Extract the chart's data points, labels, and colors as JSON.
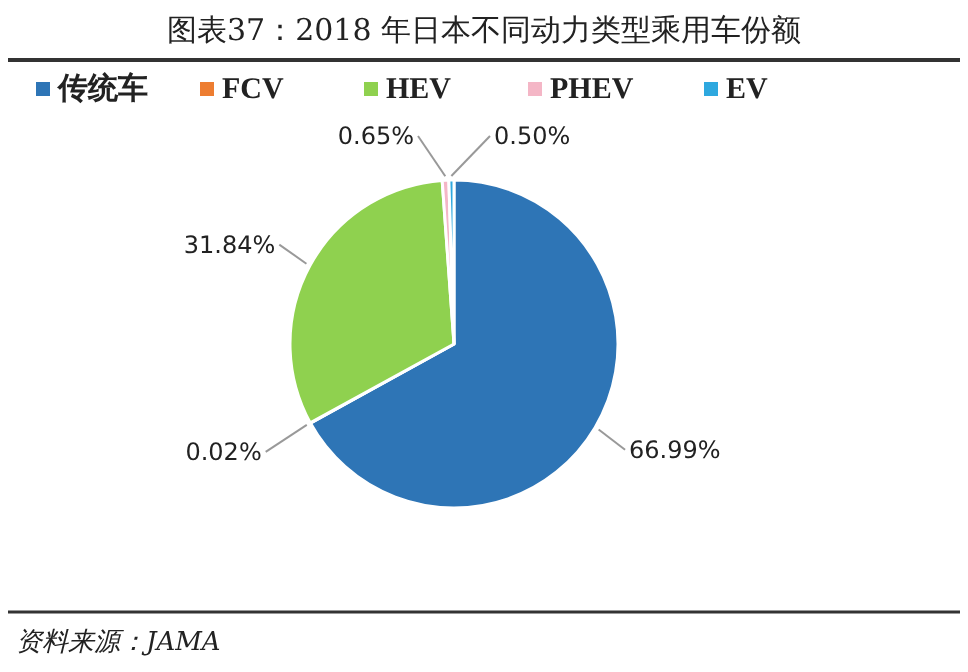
{
  "chart_data": {
    "type": "pie",
    "title": "图表37：2018 年日本不同动力类型乘用车份额",
    "categories": [
      "传统车",
      "FCV",
      "HEV",
      "PHEV",
      "EV"
    ],
    "values": [
      66.99,
      0.02,
      31.84,
      0.65,
      0.5
    ],
    "colors": [
      "#2e75b6",
      "#ed7d31",
      "#8fd14f",
      "#f4b6c6",
      "#2ea8df"
    ],
    "value_labels": [
      "66.99%",
      "0.02%",
      "31.84%",
      "0.65%",
      "0.50%"
    ],
    "legend": "top",
    "annotations": [
      "资料来源：JAMA"
    ]
  }
}
